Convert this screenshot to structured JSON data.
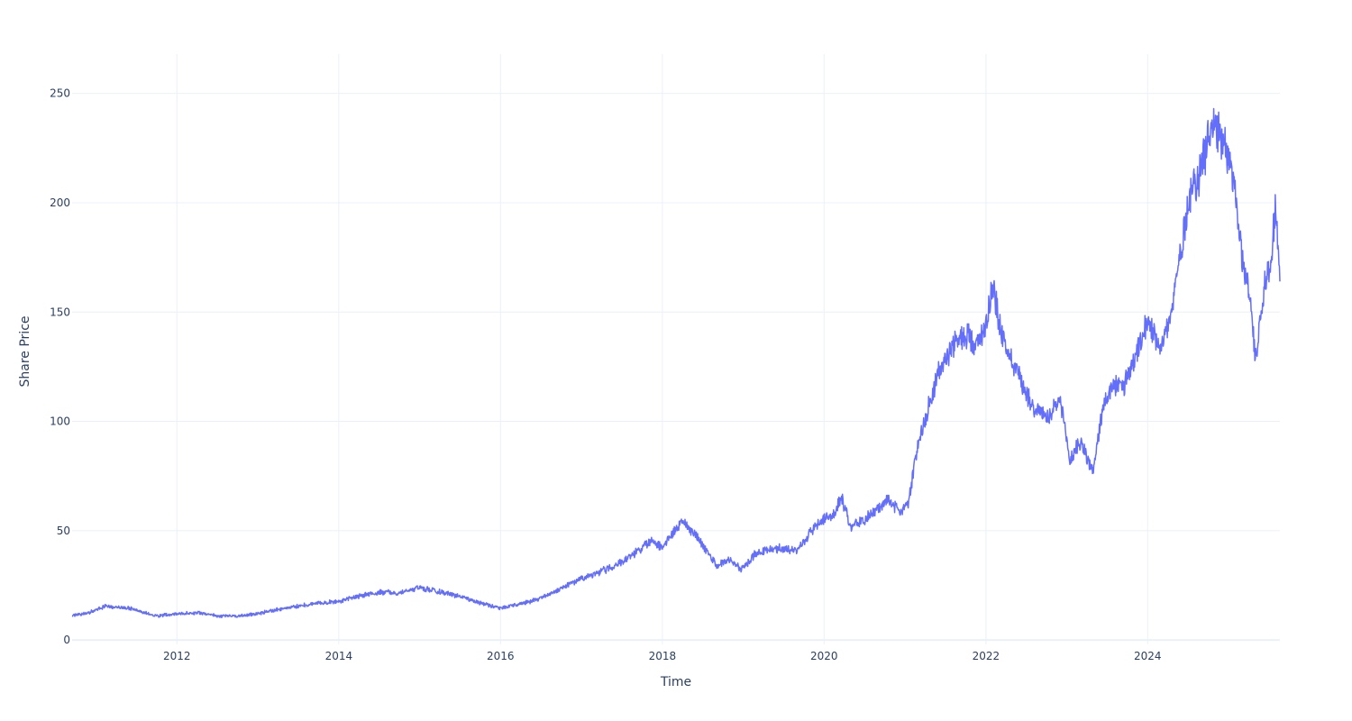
{
  "chart_data": {
    "type": "line",
    "title": "",
    "xlabel": "Time",
    "ylabel": "Share Price",
    "xlim": [
      "2010-09-15",
      "2025-08-20"
    ],
    "ylim": [
      -2,
      268
    ],
    "grid": true,
    "legend": "none",
    "x_ticks": [
      "2012",
      "2014",
      "2016",
      "2018",
      "2020",
      "2022",
      "2024"
    ],
    "y_ticks": [
      "0",
      "50",
      "100",
      "150",
      "200",
      "250"
    ],
    "series": [
      {
        "color": "#636efa",
        "x": [
          "2010-09-15",
          "2010-12-01",
          "2011-02-15",
          "2011-06-01",
          "2011-10-01",
          "2012-01-01",
          "2012-04-01",
          "2012-07-01",
          "2012-10-15",
          "2013-01-01",
          "2013-04-01",
          "2013-07-01",
          "2013-10-01",
          "2014-01-01",
          "2014-04-01",
          "2014-07-01",
          "2014-09-15",
          "2015-01-01",
          "2015-04-01",
          "2015-07-01",
          "2015-10-01",
          "2016-01-01",
          "2016-03-01",
          "2016-06-01",
          "2016-09-01",
          "2017-01-01",
          "2017-03-01",
          "2017-06-01",
          "2017-09-01",
          "2017-11-15",
          "2018-01-01",
          "2018-02-10",
          "2018-04-01",
          "2018-06-01",
          "2018-09-01",
          "2018-11-01",
          "2018-12-24",
          "2019-03-01",
          "2019-06-01",
          "2019-09-01",
          "2019-12-01",
          "2020-02-15",
          "2020-03-20",
          "2020-05-01",
          "2020-07-01",
          "2020-09-01",
          "2020-10-15",
          "2020-12-01",
          "2021-01-15",
          "2021-03-01",
          "2021-04-15",
          "2021-06-01",
          "2021-07-15",
          "2021-09-01",
          "2021-10-15",
          "2021-11-20",
          "2022-01-01",
          "2022-02-01",
          "2022-03-15",
          "2022-05-01",
          "2022-06-15",
          "2022-08-01",
          "2022-10-14",
          "2022-12-01",
          "2023-01-15",
          "2023-03-01",
          "2023-05-01",
          "2023-06-15",
          "2023-08-01",
          "2023-09-15",
          "2023-11-01",
          "2024-01-01",
          "2024-03-01",
          "2024-04-15",
          "2024-06-01",
          "2024-07-10",
          "2024-08-05",
          "2024-09-01",
          "2024-10-15",
          "2024-12-01",
          "2025-01-07",
          "2025-02-01",
          "2025-03-01",
          "2025-04-08",
          "2025-05-01",
          "2025-06-15",
          "2025-07-10",
          "2025-08-01",
          "2025-08-20"
        ],
        "y": [
          11,
          12.5,
          15.5,
          14.5,
          11,
          12,
          12.5,
          11,
          11,
          12,
          14,
          15.5,
          17,
          17.5,
          20,
          22,
          21.5,
          24,
          22,
          20,
          17,
          14.5,
          16,
          18,
          22,
          28,
          30,
          34,
          40,
          46,
          42,
          48,
          54,
          48,
          34,
          37,
          32,
          40,
          42,
          41,
          53,
          58,
          65,
          52,
          55,
          60,
          64,
          59,
          62,
          90,
          106,
          122,
          131,
          138,
          140,
          134,
          145,
          163,
          138,
          128,
          117,
          107,
          101,
          110,
          82,
          91,
          77,
          108,
          116,
          116,
          127,
          145,
          135,
          148,
          180,
          205,
          210,
          215,
          238,
          230,
          220,
          202,
          175,
          158,
          128,
          165,
          174,
          199,
          164
        ]
      }
    ]
  }
}
